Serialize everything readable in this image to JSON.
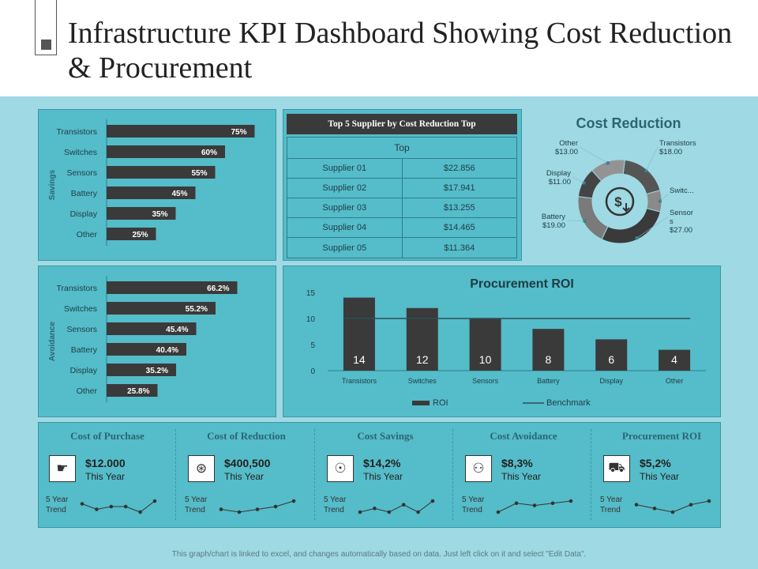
{
  "title": "Infrastructure KPI Dashboard Showing Cost Reduction & Procurement",
  "chart_data": [
    {
      "type": "bar",
      "orientation": "horizontal",
      "ylabel": "Savings",
      "categories": [
        "Transistors",
        "Switches",
        "Sensors",
        "Battery",
        "Display",
        "Other"
      ],
      "values": [
        75,
        60,
        55,
        45,
        35,
        25
      ],
      "labels": [
        "75%",
        "60%",
        "55%",
        "45%",
        "35%",
        "25%"
      ],
      "xlim": [
        0,
        100
      ]
    },
    {
      "type": "bar",
      "orientation": "horizontal",
      "ylabel": "Avoidance",
      "categories": [
        "Transistors",
        "Switches",
        "Sensors",
        "Battery",
        "Display",
        "Other"
      ],
      "values": [
        66.2,
        55.2,
        45.4,
        40.4,
        35.2,
        25.8
      ],
      "labels": [
        "66.2%",
        "55.2%",
        "45.4%",
        "40.4%",
        "35.2%",
        "25.8%"
      ],
      "xlim": [
        0,
        100
      ]
    },
    {
      "type": "table",
      "title": "Top 5 Supplier by Cost Reduction Top",
      "header": "Top",
      "rows": [
        {
          "name": "Supplier 01",
          "value": "$22.856"
        },
        {
          "name": "Supplier 02",
          "value": "$17.941"
        },
        {
          "name": "Supplier 03",
          "value": "$13.255"
        },
        {
          "name": "Supplier 04",
          "value": "$14.465"
        },
        {
          "name": "Supplier 05",
          "value": "$11.364"
        }
      ]
    },
    {
      "type": "pie",
      "title": "Cost Reduction",
      "slices": [
        {
          "name": "Transistors",
          "label": "Transistors",
          "value_label": "$18.00",
          "value": 18,
          "color": "#555555"
        },
        {
          "name": "Switches",
          "label": "Switc...",
          "value_label": "",
          "value": 8,
          "color": "#8a8a8a"
        },
        {
          "name": "Sensors",
          "label": "Sensor s",
          "value_label": "$27.00",
          "value": 27,
          "color": "#3a3a3a"
        },
        {
          "name": "Battery",
          "label": "Battery",
          "value_label": "$19.00",
          "value": 19,
          "color": "#7a7a7a"
        },
        {
          "name": "Display",
          "label": "Display",
          "value_label": "$11.00",
          "value": 11,
          "color": "#444444"
        },
        {
          "name": "Other",
          "label": "Other",
          "value_label": "$13.00",
          "value": 13,
          "color": "#939393"
        }
      ]
    },
    {
      "type": "bar",
      "title": "Procurement ROI",
      "categories": [
        "Transistors",
        "Switches",
        "Sensors",
        "Battery",
        "Display",
        "Other"
      ],
      "series": [
        {
          "name": "ROI",
          "values": [
            14,
            12,
            10,
            8,
            6,
            4
          ]
        },
        {
          "name": "Benchmark",
          "values": [
            10,
            10,
            10,
            10,
            10,
            10
          ],
          "style": "line"
        }
      ],
      "ylim": [
        0,
        15
      ],
      "yticks": [
        0,
        5,
        10,
        15
      ]
    }
  ],
  "kpis": [
    {
      "title": "Cost of Purchase",
      "icon": "money-hand-icon",
      "glyph": "☛",
      "value": "$12.000",
      "sub": "This Year",
      "trend_label": "5 Year Trend",
      "trend": [
        3,
        1,
        2,
        2,
        0,
        4
      ]
    },
    {
      "title": "Cost of Reduction",
      "icon": "dollar-down-icon",
      "glyph": "⊛",
      "value": "$400,500",
      "sub": "This Year",
      "trend_label": "5 Year Trend",
      "trend": [
        2,
        1,
        2,
        3,
        5
      ]
    },
    {
      "title": "Cost Savings",
      "icon": "money-hand-icon",
      "glyph": "☉",
      "value": "$14,2%",
      "sub": "This Year",
      "trend_label": "5 Year Trend",
      "trend": [
        1,
        2,
        1,
        3,
        1,
        4
      ]
    },
    {
      "title": "Cost Avoidance",
      "icon": "coins-icon",
      "glyph": "⚇",
      "value": "$8,3%",
      "sub": "This Year",
      "trend_label": "5 Year Trend",
      "trend": [
        0,
        4,
        3,
        4,
        5
      ]
    },
    {
      "title": "Procurement ROI",
      "icon": "cart-icon",
      "glyph": "⛟",
      "value": "$5,2%",
      "sub": "This Year",
      "trend_label": "5 Year Trend",
      "trend": [
        3,
        2,
        1,
        3,
        4
      ]
    }
  ],
  "footer": "This graph/chart is linked to excel, and changes automatically based on data. Just left click on it and select \"Edit Data\"."
}
